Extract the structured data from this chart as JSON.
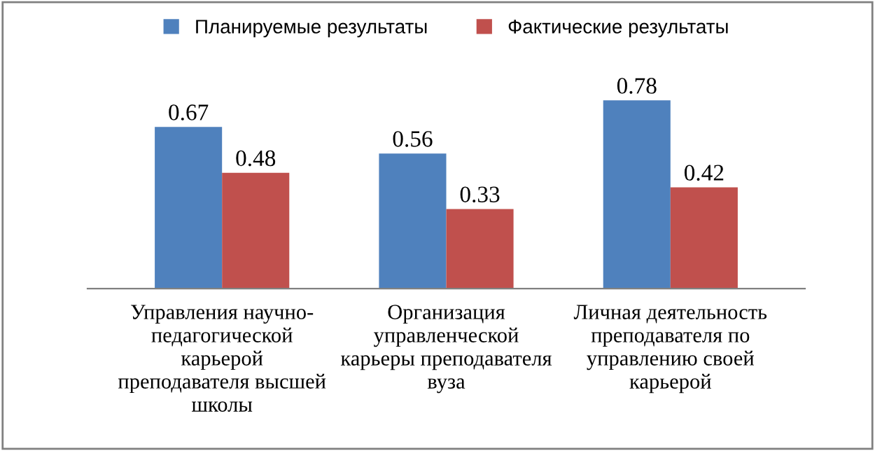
{
  "chart_data": {
    "type": "bar",
    "categories": [
      "Управления научно-\nпедагогической\nкарьерой\nпреподавателя высшей\nшколы",
      "Организация\nуправленческой\nкарьеры преподавателя\nвуза",
      "Личная деятельность\nпреподавателя по\nуправлению своей\nкарьерой"
    ],
    "series": [
      {
        "name": "Планируемые результаты",
        "color": "#4f81bd",
        "values": [
          0.67,
          0.56,
          0.78
        ]
      },
      {
        "name": "Фактические результаты",
        "color": "#c0504d",
        "values": [
          0.48,
          0.33,
          0.42
        ]
      }
    ],
    "data_labels": true,
    "legend": "top"
  }
}
